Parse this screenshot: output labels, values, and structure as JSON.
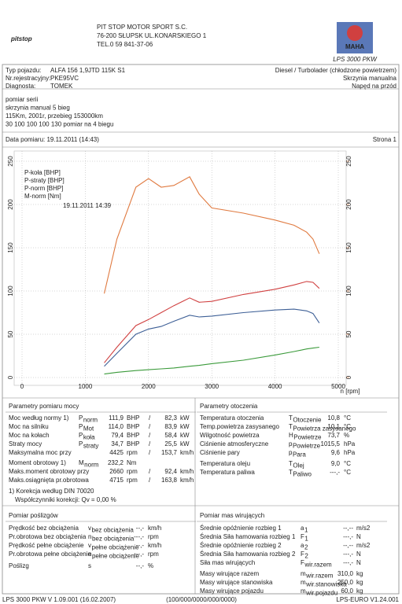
{
  "header": {
    "logo_left": "pit",
    "logo_right": "stop",
    "company": [
      "PIT STOP MOTOR SPORT S.C.",
      "76-200 SŁUPSK UL.KONARSKIEGO 1",
      "TEL.0 59 841-37-06"
    ],
    "brand": "MAHA",
    "model": "LPS 3000 PKW"
  },
  "vehicle": {
    "rows": [
      [
        "Typ pojazdu:",
        "ALFA 156 1,9JTD 115K S1"
      ],
      [
        "Nr.rejestracyjny:",
        "PKE95VC"
      ],
      [
        "Diagnosta:",
        "TOMEK"
      ]
    ],
    "right": [
      "Diesel / Turbolader (chłodzone powietrzem)",
      "Skrzynia manualna",
      "Napęd na przód"
    ]
  },
  "notes": [
    "pomiar serii",
    "skrzynia manual 5 bieg",
    "115Km, 2001r, przebieg 153000km",
    "30 100 100 100 130 pomiar na 4 biegu"
  ],
  "date": {
    "label": "Data pomiaru: 19.11.2011 (14:43)",
    "page": "Strona 1"
  },
  "chart_data": {
    "type": "line",
    "x": [
      1300,
      1500,
      1800,
      2000,
      2200,
      2400,
      2650,
      2800,
      3000,
      3500,
      4000,
      4300,
      4500,
      4600,
      4700
    ],
    "xlim": [
      0,
      5000
    ],
    "xticks": [
      0,
      1000,
      2000,
      3000,
      4000,
      5000
    ],
    "x_label": "n [rpm]",
    "ylim": [
      0,
      250
    ],
    "yticks": [
      0,
      50,
      100,
      150,
      200,
      250
    ],
    "y2lim": [
      0,
      250
    ],
    "y2ticks": [
      0,
      50,
      100,
      150,
      200,
      250
    ],
    "y2_color": "#e07a40",
    "annotation": "19.11.2011 14:39",
    "series": [
      {
        "name": "P-koła [BHP]",
        "color": "#3d5f96",
        "values": [
          13,
          28,
          50,
          56,
          59,
          65,
          72,
          70,
          71,
          75,
          78,
          79,
          77,
          74,
          63
        ]
      },
      {
        "name": "P-straty [BHP]",
        "color": "#3a9a3a",
        "values": [
          4,
          6,
          8,
          9,
          10,
          11,
          13,
          14,
          16,
          20,
          26,
          30,
          33,
          34,
          35
        ]
      },
      {
        "name": "P-norm [BHP]",
        "color": "#d04040",
        "values": [
          17,
          35,
          60,
          67,
          75,
          83,
          92,
          87,
          88,
          96,
          102,
          107,
          111,
          110,
          103
        ]
      },
      {
        "name": "M-norm [Nm]",
        "color": "#e07a40",
        "axis": "y2",
        "values": [
          97,
          160,
          220,
          230,
          220,
          222,
          232,
          212,
          196,
          190,
          182,
          176,
          168,
          160,
          143
        ]
      }
    ]
  },
  "power_params": {
    "title": "Parametry pomiaru mocy",
    "rows": [
      {
        "label": "Moc według normy 1)",
        "sym": "P",
        "sub": "norm",
        "v1": "111,9",
        "u1": "BHP",
        "sep": "/",
        "v2": "82,3",
        "u2": "kW",
        "color": "#d04040"
      },
      {
        "label": "Moc na silniku",
        "sym": "P",
        "sub": "Mot",
        "v1": "114,0",
        "u1": "BHP",
        "sep": "/",
        "v2": "83,9",
        "u2": "kW",
        "color": "#d04040"
      },
      {
        "label": "Moc na kołach",
        "sym": "P",
        "sub": "koła",
        "v1": "79,4",
        "u1": "BHP",
        "sep": "/",
        "v2": "58,4",
        "u2": "kW",
        "color": "#3d5f96"
      },
      {
        "label": "Straty mocy",
        "sym": "P",
        "sub": "straty",
        "v1": "34,7",
        "u1": "BHP",
        "sep": "/",
        "v2": "25,5",
        "u2": "kW",
        "color": "#3a9a3a"
      },
      {
        "label": "Maksymalna moc przy",
        "v1": "4425",
        "u1": "rpm",
        "sep": "/",
        "v2": "153,7",
        "u2": "km/h",
        "color": "#222222"
      },
      {
        "label": "Moment obrotowy 1)",
        "sym": "M",
        "sub": "norm",
        "v1": "232,2",
        "u1": "Nm",
        "color": "#e07a40"
      },
      {
        "label": "Maks.moment obrotowy przy",
        "v1": "2660",
        "u1": "rpm",
        "sep": "/",
        "v2": "92,4",
        "u2": "km/h",
        "color": "#222222"
      },
      {
        "label": "Maks.osiągnięta pr.obrotowa",
        "v1": "4715",
        "u1": "rpm",
        "sep": "/",
        "v2": "163,8",
        "u2": "km/h",
        "color": "#222222"
      }
    ],
    "notes": [
      "1) Korekcja według DIN 70020",
      "Współczynniki korekcji: Qv = 0,00 %"
    ]
  },
  "ambient": {
    "title": "Parametry otoczenia",
    "rows": [
      {
        "label": "Temperatura otoczenia",
        "sym": "T",
        "sub": "Otoczenie",
        "v1": "10,8",
        "u1": "°C"
      },
      {
        "label": "Temp.powietrza zasysanego",
        "sym": "T",
        "sub": "Powietrza zasysanego",
        "v1": "10,1",
        "u1": "°C"
      },
      {
        "label": "Wilgotność powietrza",
        "sym": "H",
        "sub": "Powietrze",
        "v1": "73,7",
        "u1": "%"
      },
      {
        "label": "Ciśnienie atmosferyczne",
        "sym": "p",
        "sub": "Powietrze",
        "v1": "1015,5",
        "u1": "hPa"
      },
      {
        "label": "Ciśnienie pary",
        "sym": "p",
        "sub": "Para",
        "v1": "9,6",
        "u1": "hPa"
      },
      {
        "label": "Temperatura oleju",
        "sym": "T",
        "sub": "Olej",
        "v1": "9,0",
        "u1": "°C"
      },
      {
        "label": "Temperatura paliwa",
        "sym": "T",
        "sub": "Paliwo",
        "v1": "---,-",
        "u1": "°C"
      }
    ]
  },
  "slip": {
    "title": "Pomiar poślizgów",
    "rows": [
      {
        "label": "Prędkość bez obciążenia",
        "sym": "v",
        "sub": "bez obciążenia",
        "v1": "--,-",
        "u1": "km/h"
      },
      {
        "label": "Pr.obrotowa bez obciążenia",
        "sym": "n",
        "sub": "bez obciążenia",
        "v1": "---,-",
        "u1": "rpm"
      },
      {
        "label": "Prędkość pełne obciążenie",
        "sym": "v",
        "sub": "pełne obciążenie",
        "v1": "--,-",
        "u1": "km/h"
      },
      {
        "label": "Pr.obrotowa pełne obciążenie",
        "sym": "n",
        "sub": "pełne obciążenie",
        "v1": "---,-",
        "u1": "rpm"
      },
      {
        "label": "Poślizg",
        "sym": "s",
        "v1": "--,-",
        "u1": "%"
      }
    ]
  },
  "masses": {
    "title": "Pomiar mas wirujących",
    "rows": [
      {
        "label": "Średnie opóźnienie rozbieg 1",
        "sym": "a",
        "sub": "1",
        "v1": "--,--",
        "u1": "m/s2"
      },
      {
        "label": "Średnia Siła hamowania rozbieg 1",
        "sym": "F",
        "sub": "1",
        "v1": "---,-",
        "u1": "N"
      },
      {
        "label": "Średnie opóźnienie rozbieg 2",
        "sym": "a",
        "sub": "2",
        "v1": "--,--",
        "u1": "m/s2"
      },
      {
        "label": "Średnia Siła hamowania rozbieg 2",
        "sym": "F",
        "sub": "2",
        "v1": "---,-",
        "u1": "N"
      },
      {
        "label": "Siła mas wirujących",
        "sym": "F",
        "sub": "wir.razem",
        "v1": "---,-",
        "u1": "N"
      },
      {
        "label": "Masy wirujące razem",
        "sym": "m",
        "sub": "wir.razem",
        "v1": "310,0",
        "u1": "kg"
      },
      {
        "label": "Masy wirujące stanowiska",
        "sym": "m",
        "sub": "wir.stanowiska",
        "v1": "250,0",
        "u1": "kg"
      },
      {
        "label": "Masy wirujące pojazdu",
        "sym": "m",
        "sub": "wir.pojazdu",
        "v1": "60,0",
        "u1": "kg"
      }
    ]
  },
  "footer": [
    "LPS 3000 PKW V 1.09.001 (16.02.2007)",
    "(100/000/0000/000/0000)",
    "LPS-EURO V1.24.001"
  ]
}
